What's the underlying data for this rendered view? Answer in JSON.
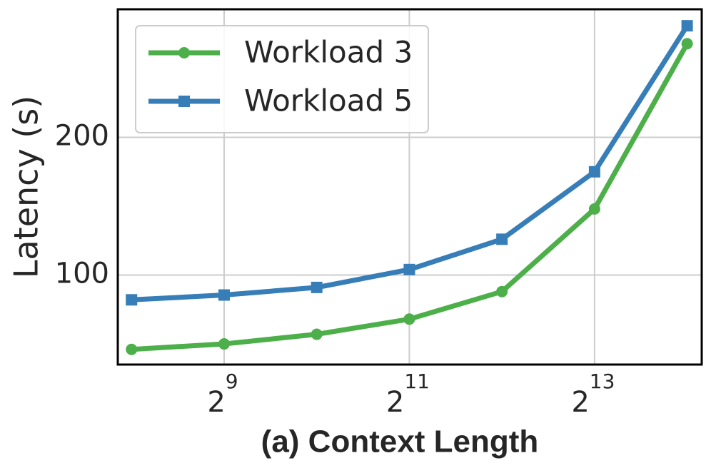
{
  "chart_data": {
    "type": "line",
    "xlabel": "(a) Context Length",
    "ylabel": "Latency (s)",
    "x": [
      256,
      512,
      1024,
      2048,
      4096,
      8192,
      16384
    ],
    "series": [
      {
        "name": "Workload 3",
        "color": "#4daf4a",
        "marker": "circle",
        "values": [
          46,
          50,
          57,
          68,
          88,
          148,
          268
        ]
      },
      {
        "name": "Workload 5",
        "color": "#377eb8",
        "marker": "square",
        "values": [
          82,
          85.5,
          91,
          104,
          126,
          175,
          281
        ]
      }
    ],
    "xscale": "log2",
    "xlim": [
      231,
      18270
    ],
    "xticks": [
      {
        "value": 512,
        "label": "2",
        "exponent": 9
      },
      {
        "value": 2048,
        "label": "2",
        "exponent": 11
      },
      {
        "value": 8192,
        "label": "2",
        "exponent": 13
      }
    ],
    "ylim": [
      35,
      293
    ],
    "yticks": [
      100,
      200
    ],
    "grid": true,
    "legend": "upper left"
  }
}
